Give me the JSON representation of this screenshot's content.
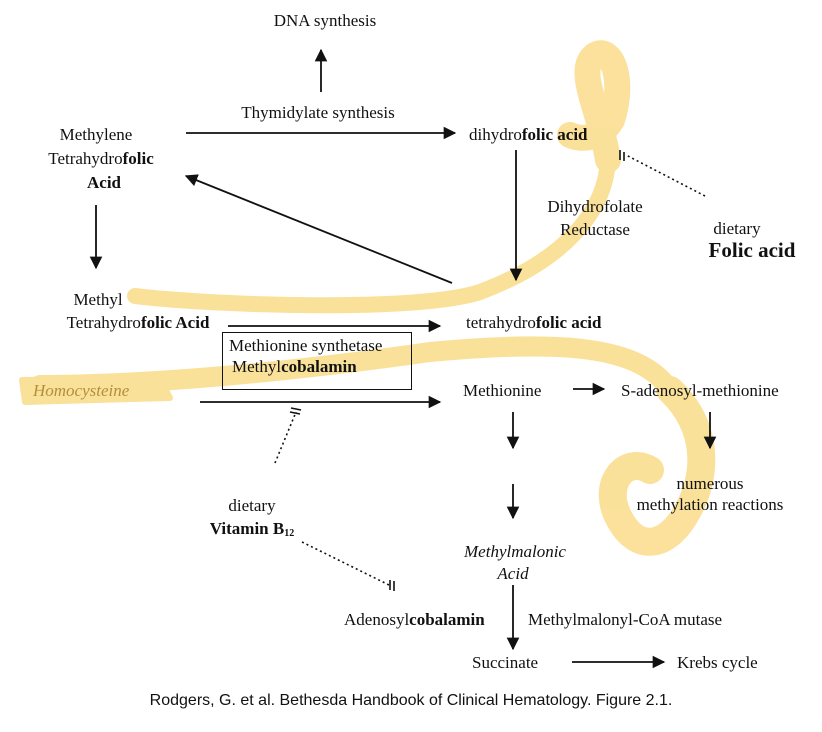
{
  "nodes": {
    "dna": "DNA synthesis",
    "thymidylate": "Thymidylate synthesis",
    "methylene_1": "Methylene",
    "methylene_2_pre": "Tetrahydro",
    "methylene_2_bold": "folic",
    "methylene_3": "Acid",
    "dihydro_pre": "dihydro",
    "dihydro_bold": "folic acid",
    "dhfr_1": "Dihydrofolate",
    "dhfr_2": "Reductase",
    "dietary_folic_1": "dietary",
    "dietary_folic_2": "Folic acid",
    "methyl_1": "Methyl",
    "methyl_2_pre": "Tetrahydro",
    "methyl_2_bold": "folic Acid",
    "tetra_pre": "tetrahydro",
    "tetra_bold": "folic acid",
    "ms_1": "Methionine synthetase",
    "ms_2_pre": "Methyl",
    "ms_2_bold": "cobalamin",
    "homocysteine": "Homocysteine",
    "methionine": "Methionine",
    "sam": "S-adenosyl-methionine",
    "numerous_1": "numerous",
    "numerous_2": "methylation reactions",
    "dietary_b12_1": "dietary",
    "dietary_b12_2": "Vitamin B",
    "dietary_b12_sub": "12",
    "mma_1": "Methylmalonic",
    "mma_2": "Acid",
    "adenosyl_pre": "Adenosyl",
    "adenosyl_bold": "cobalamin",
    "mutase": "Methylmalonyl-CoA mutase",
    "succinate": "Succinate",
    "krebs": "Krebs cycle"
  },
  "caption": "Rodgers, G. et al. Bethesda Handbook of Clinical Hematology. Figure 2.1.",
  "colors": {
    "highlight": "#f7c948",
    "ink": "#111111",
    "highlight_text": "#b48f3a"
  }
}
